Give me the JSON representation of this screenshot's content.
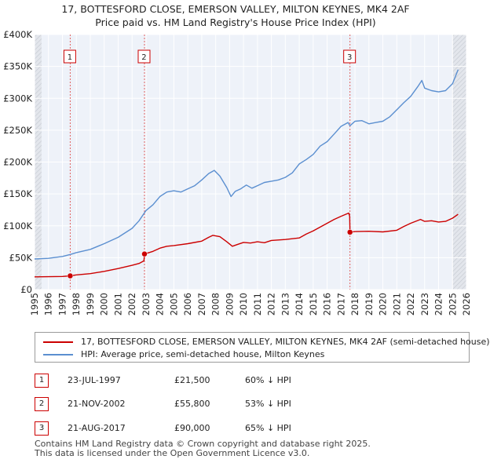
{
  "title_line1": "17, BOTTESFORD CLOSE, EMERSON VALLEY, MILTON KEYNES, MK4 2AF",
  "title_line2": "Price paid vs. HM Land Registry's House Price Index (HPI)",
  "chart_data": {
    "type": "line",
    "title": "17, BOTTESFORD CLOSE, EMERSON VALLEY, MILTON KEYNES, MK4 2AF — Price paid vs. HM Land Registry's House Price Index (HPI)",
    "xlim": [
      1995,
      2026
    ],
    "ylim": [
      0,
      400000
    ],
    "x_ticks": [
      "1995",
      "1996",
      "1997",
      "1998",
      "1999",
      "2000",
      "2001",
      "2002",
      "2003",
      "2004",
      "2005",
      "2006",
      "2007",
      "2008",
      "2009",
      "2010",
      "2011",
      "2012",
      "2013",
      "2014",
      "2015",
      "2016",
      "2017",
      "2018",
      "2019",
      "2020",
      "2021",
      "2022",
      "2023",
      "2024",
      "2025",
      "2026"
    ],
    "y_ticks": [
      {
        "value": 0,
        "label": "£0"
      },
      {
        "value": 50000,
        "label": "£50K"
      },
      {
        "value": 100000,
        "label": "£100K"
      },
      {
        "value": 150000,
        "label": "£150K"
      },
      {
        "value": 200000,
        "label": "£200K"
      },
      {
        "value": 250000,
        "label": "£250K"
      },
      {
        "value": 300000,
        "label": "£300K"
      },
      {
        "value": 350000,
        "label": "£350K"
      },
      {
        "value": 400000,
        "label": "£400K"
      }
    ],
    "sale_lines": [
      {
        "label": "1",
        "x": 1997.56
      },
      {
        "label": "2",
        "x": 2002.89
      },
      {
        "label": "3",
        "x": 2017.64
      }
    ],
    "shaded_regions": [
      [
        1995,
        1995.5
      ],
      [
        2025.0,
        2026
      ]
    ],
    "series": [
      {
        "name": "17, BOTTESFORD CLOSE, EMERSON VALLEY, MILTON KEYNES, MK4 2AF (semi-detached house)",
        "color": "#cc0000",
        "points": [
          [
            1995.0,
            20000
          ],
          [
            1996.0,
            20200
          ],
          [
            1997.0,
            20600
          ],
          [
            1997.56,
            21500
          ],
          [
            1998.0,
            23000
          ],
          [
            1999.0,
            25000
          ],
          [
            2000.0,
            28500
          ],
          [
            2001.0,
            33000
          ],
          [
            2002.0,
            38000
          ],
          [
            2002.5,
            41000
          ],
          [
            2002.85,
            45000
          ],
          [
            2002.89,
            55800
          ],
          [
            2003.5,
            60000
          ],
          [
            2004.0,
            65000
          ],
          [
            2004.5,
            68000
          ],
          [
            2005.0,
            69000
          ],
          [
            2006.0,
            72000
          ],
          [
            2007.0,
            76000
          ],
          [
            2007.5,
            82000
          ],
          [
            2007.8,
            85000
          ],
          [
            2008.3,
            83000
          ],
          [
            2008.8,
            75000
          ],
          [
            2009.2,
            68000
          ],
          [
            2009.6,
            71000
          ],
          [
            2010.0,
            74000
          ],
          [
            2010.5,
            73000
          ],
          [
            2011.0,
            75000
          ],
          [
            2011.5,
            73500
          ],
          [
            2012.0,
            77000
          ],
          [
            2013.0,
            78500
          ],
          [
            2014.0,
            81000
          ],
          [
            2014.5,
            87000
          ],
          [
            2015.0,
            92000
          ],
          [
            2015.5,
            98000
          ],
          [
            2016.0,
            104000
          ],
          [
            2016.5,
            110000
          ],
          [
            2017.0,
            115000
          ],
          [
            2017.55,
            120000
          ],
          [
            2017.62,
            115000
          ],
          [
            2017.64,
            90000
          ],
          [
            2018.0,
            91000
          ],
          [
            2019.0,
            91500
          ],
          [
            2020.0,
            90500
          ],
          [
            2021.0,
            93000
          ],
          [
            2021.5,
            99000
          ],
          [
            2022.0,
            104000
          ],
          [
            2022.7,
            110000
          ],
          [
            2023.0,
            107000
          ],
          [
            2023.5,
            108000
          ],
          [
            2024.0,
            106000
          ],
          [
            2024.5,
            107000
          ],
          [
            2025.0,
            112000
          ],
          [
            2025.4,
            118000
          ]
        ]
      },
      {
        "name": "HPI: Average price, semi-detached house, Milton Keynes",
        "color": "#5b8fd0",
        "points": [
          [
            1995.0,
            48000
          ],
          [
            1996.0,
            49000
          ],
          [
            1997.0,
            52000
          ],
          [
            1997.56,
            55000
          ],
          [
            1998.0,
            58000
          ],
          [
            1999.0,
            63000
          ],
          [
            2000.0,
            72000
          ],
          [
            2001.0,
            82000
          ],
          [
            2002.0,
            96000
          ],
          [
            2002.5,
            108000
          ],
          [
            2003.0,
            124000
          ],
          [
            2003.5,
            133000
          ],
          [
            2004.0,
            146000
          ],
          [
            2004.5,
            153000
          ],
          [
            2005.0,
            155000
          ],
          [
            2005.5,
            153000
          ],
          [
            2006.0,
            158000
          ],
          [
            2006.5,
            163000
          ],
          [
            2007.0,
            172000
          ],
          [
            2007.5,
            182000
          ],
          [
            2007.9,
            187000
          ],
          [
            2008.3,
            178000
          ],
          [
            2008.8,
            160000
          ],
          [
            2009.1,
            146000
          ],
          [
            2009.4,
            154000
          ],
          [
            2009.8,
            158000
          ],
          [
            2010.2,
            164000
          ],
          [
            2010.6,
            159000
          ],
          [
            2011.0,
            163000
          ],
          [
            2011.5,
            168000
          ],
          [
            2012.0,
            170000
          ],
          [
            2012.5,
            172000
          ],
          [
            2013.0,
            176000
          ],
          [
            2013.5,
            183000
          ],
          [
            2014.0,
            197000
          ],
          [
            2014.5,
            204000
          ],
          [
            2015.0,
            212000
          ],
          [
            2015.5,
            225000
          ],
          [
            2016.0,
            232000
          ],
          [
            2016.5,
            244000
          ],
          [
            2017.0,
            256000
          ],
          [
            2017.5,
            262000
          ],
          [
            2017.64,
            257000
          ],
          [
            2018.0,
            264000
          ],
          [
            2018.5,
            265000
          ],
          [
            2019.0,
            260000
          ],
          [
            2019.5,
            262000
          ],
          [
            2020.0,
            264000
          ],
          [
            2020.5,
            271000
          ],
          [
            2021.0,
            282000
          ],
          [
            2021.5,
            293000
          ],
          [
            2022.0,
            303000
          ],
          [
            2022.5,
            318000
          ],
          [
            2022.8,
            328000
          ],
          [
            2023.0,
            316000
          ],
          [
            2023.5,
            312000
          ],
          [
            2024.0,
            310000
          ],
          [
            2024.5,
            312000
          ],
          [
            2025.0,
            323000
          ],
          [
            2025.4,
            345000
          ]
        ]
      }
    ],
    "sale_points": [
      {
        "label": "1",
        "x": 1997.56,
        "y": 21500
      },
      {
        "label": "2",
        "x": 2002.89,
        "y": 55800
      },
      {
        "label": "3",
        "x": 2017.64,
        "y": 90000
      }
    ]
  },
  "legend": {
    "property_label": "17, BOTTESFORD CLOSE, EMERSON VALLEY, MILTON KEYNES, MK4 2AF (semi-detached house)",
    "hpi_label": "HPI: Average price, semi-detached house, Milton Keynes"
  },
  "sales": [
    {
      "num": "1",
      "date": "23-JUL-1997",
      "price": "£21,500",
      "hpi": "60% ↓ HPI"
    },
    {
      "num": "2",
      "date": "21-NOV-2002",
      "price": "£55,800",
      "hpi": "53% ↓ HPI"
    },
    {
      "num": "3",
      "date": "21-AUG-2017",
      "price": "£90,000",
      "hpi": "65% ↓ HPI"
    }
  ],
  "footer_line1": "Contains HM Land Registry data © Crown copyright and database right 2025.",
  "footer_line2": "This data is licensed under the Open Government Licence v3.0."
}
